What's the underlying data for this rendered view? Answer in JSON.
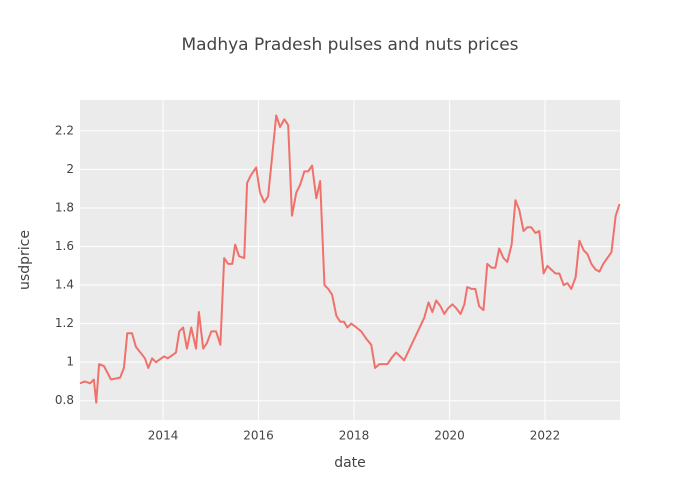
{
  "chart_data": {
    "type": "line",
    "title": "Madhya Pradesh pulses and nuts prices",
    "x_label": "date",
    "y_label": "usdprice",
    "x": [
      2012.26,
      2012.36,
      2012.47,
      2012.55,
      2012.6,
      2012.66,
      2012.76,
      2012.91,
      2013.1,
      2013.18,
      2013.25,
      2013.35,
      2013.43,
      2013.62,
      2013.69,
      2013.77,
      2013.85,
      2014.02,
      2014.1,
      2014.27,
      2014.34,
      2014.42,
      2014.5,
      2014.59,
      2014.69,
      2014.75,
      2014.84,
      2014.92,
      2015.01,
      2015.11,
      2015.2,
      2015.28,
      2015.36,
      2015.45,
      2015.51,
      2015.59,
      2015.7,
      2015.76,
      2015.84,
      2015.95,
      2016.03,
      2016.12,
      2016.2,
      2016.37,
      2016.45,
      2016.54,
      2016.62,
      2016.7,
      2016.79,
      2016.87,
      2016.96,
      2017.04,
      2017.12,
      2017.21,
      2017.29,
      2017.38,
      2017.46,
      2017.54,
      2017.63,
      2017.71,
      2017.79,
      2017.86,
      2017.94,
      2018.05,
      2018.15,
      2018.26,
      2018.36,
      2018.44,
      2018.53,
      2018.7,
      2018.78,
      2018.88,
      2019.05,
      2019.47,
      2019.56,
      2019.64,
      2019.72,
      2019.81,
      2019.89,
      2019.97,
      2020.06,
      2020.14,
      2020.23,
      2020.31,
      2020.37,
      2020.46,
      2020.54,
      2020.62,
      2020.71,
      2020.79,
      2020.88,
      2020.96,
      2021.04,
      2021.13,
      2021.21,
      2021.3,
      2021.38,
      2021.46,
      2021.55,
      2021.63,
      2021.71,
      2021.8,
      2021.88,
      2021.97,
      2022.05,
      2022.13,
      2022.22,
      2022.3,
      2022.39,
      2022.47,
      2022.55,
      2022.64,
      2022.72,
      2022.81,
      2022.89,
      2022.97,
      2023.06,
      2023.14,
      2023.22,
      2023.39,
      2023.48,
      2023.56
    ],
    "series": [
      {
        "name": "usdprice",
        "color": "#f0716b",
        "values": [
          0.89,
          0.9,
          0.89,
          0.91,
          0.79,
          0.99,
          0.98,
          0.91,
          0.92,
          0.97,
          1.15,
          1.15,
          1.08,
          1.02,
          0.97,
          1.02,
          1.0,
          1.03,
          1.02,
          1.05,
          1.16,
          1.18,
          1.07,
          1.18,
          1.07,
          1.26,
          1.07,
          1.1,
          1.16,
          1.16,
          1.09,
          1.54,
          1.51,
          1.51,
          1.61,
          1.55,
          1.54,
          1.93,
          1.97,
          2.01,
          1.88,
          1.83,
          1.86,
          2.28,
          2.22,
          2.26,
          2.23,
          1.76,
          1.88,
          1.92,
          1.99,
          1.99,
          2.02,
          1.85,
          1.94,
          1.4,
          1.38,
          1.35,
          1.24,
          1.21,
          1.21,
          1.18,
          1.2,
          1.18,
          1.16,
          1.12,
          1.09,
          0.97,
          0.99,
          0.99,
          1.02,
          1.05,
          1.01,
          1.23,
          1.31,
          1.26,
          1.32,
          1.29,
          1.25,
          1.28,
          1.3,
          1.28,
          1.25,
          1.3,
          1.39,
          1.38,
          1.38,
          1.29,
          1.27,
          1.51,
          1.49,
          1.49,
          1.59,
          1.54,
          1.52,
          1.61,
          1.84,
          1.79,
          1.68,
          1.7,
          1.7,
          1.67,
          1.68,
          1.46,
          1.5,
          1.48,
          1.46,
          1.46,
          1.4,
          1.41,
          1.38,
          1.44,
          1.63,
          1.58,
          1.56,
          1.51,
          1.48,
          1.47,
          1.51,
          1.57,
          1.76,
          1.82
        ]
      }
    ],
    "xlim": [
      2012.26,
      2023.57
    ],
    "xticks": [
      2014,
      2016,
      2018,
      2020,
      2022
    ],
    "ylim": [
      0.7,
      2.36
    ],
    "yticks": [
      0.8,
      1,
      1.2,
      1.4,
      1.6,
      1.8,
      2,
      2.2
    ],
    "grid": true
  }
}
